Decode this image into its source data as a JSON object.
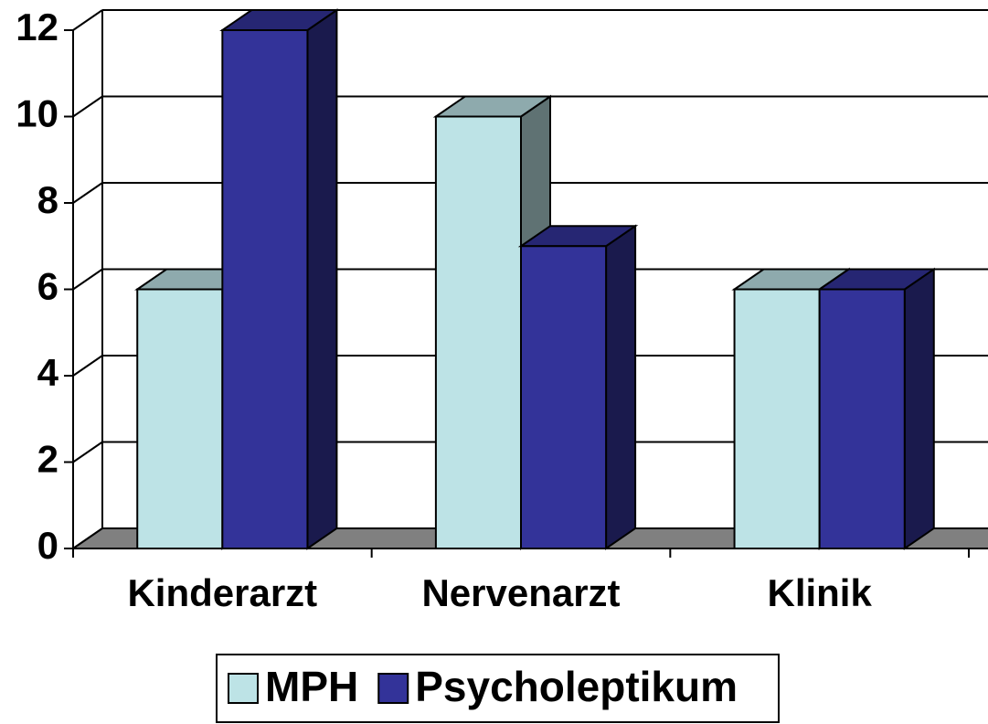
{
  "chart_data": {
    "type": "bar3d",
    "categories": [
      "Kinderarzt",
      "Nervenarzt",
      "Klinik"
    ],
    "series": [
      {
        "name": "MPH",
        "color": "#bde3e6",
        "values": [
          6,
          10,
          6
        ]
      },
      {
        "name": "Psycholeptikum",
        "color": "#333399",
        "values": [
          12,
          7,
          6
        ]
      }
    ],
    "ylim": [
      0,
      12
    ],
    "yticks": [
      0,
      2,
      4,
      6,
      8,
      10,
      12
    ],
    "grid": true,
    "legend": "bottom"
  }
}
